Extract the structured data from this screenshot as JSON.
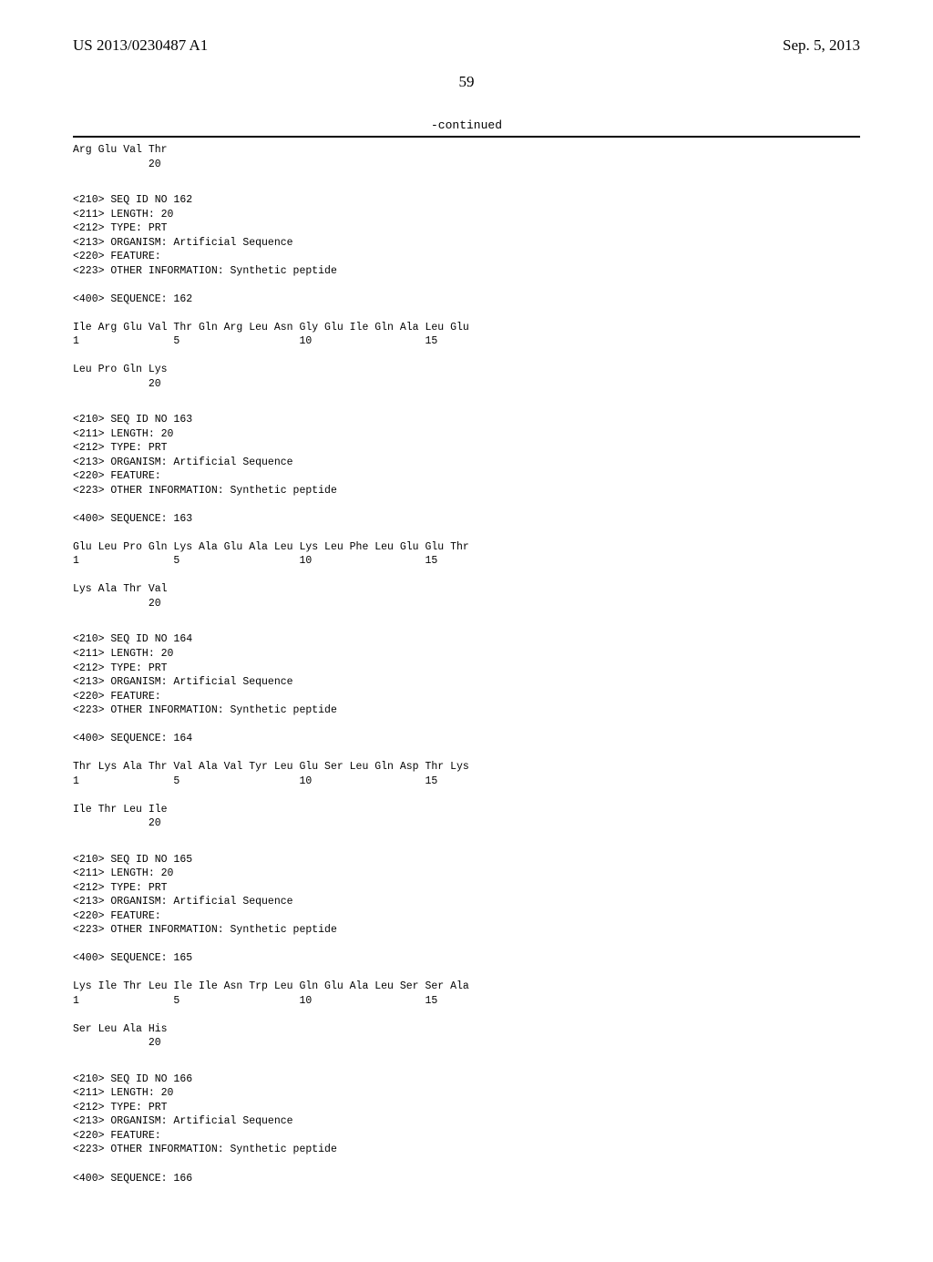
{
  "header": {
    "publication_number": "US 2013/0230487 A1",
    "publication_date": "Sep. 5, 2013"
  },
  "page_number": "59",
  "continued_label": "-continued",
  "tail_161": {
    "line1": "Arg Glu Val Thr",
    "nums": "            20"
  },
  "seq162": {
    "h1": "<210> SEQ ID NO 162",
    "h2": "<211> LENGTH: 20",
    "h3": "<212> TYPE: PRT",
    "h4": "<213> ORGANISM: Artificial Sequence",
    "h5": "<220> FEATURE:",
    "h6": "<223> OTHER INFORMATION: Synthetic peptide",
    "h7": "<400> SEQUENCE: 162",
    "row1": "Ile Arg Glu Val Thr Gln Arg Leu Asn Gly Glu Ile Gln Ala Leu Glu",
    "num1": "1               5                   10                  15",
    "row2": "Leu Pro Gln Lys",
    "num2": "            20"
  },
  "seq163": {
    "h1": "<210> SEQ ID NO 163",
    "h2": "<211> LENGTH: 20",
    "h3": "<212> TYPE: PRT",
    "h4": "<213> ORGANISM: Artificial Sequence",
    "h5": "<220> FEATURE:",
    "h6": "<223> OTHER INFORMATION: Synthetic peptide",
    "h7": "<400> SEQUENCE: 163",
    "row1": "Glu Leu Pro Gln Lys Ala Glu Ala Leu Lys Leu Phe Leu Glu Glu Thr",
    "num1": "1               5                   10                  15",
    "row2": "Lys Ala Thr Val",
    "num2": "            20"
  },
  "seq164": {
    "h1": "<210> SEQ ID NO 164",
    "h2": "<211> LENGTH: 20",
    "h3": "<212> TYPE: PRT",
    "h4": "<213> ORGANISM: Artificial Sequence",
    "h5": "<220> FEATURE:",
    "h6": "<223> OTHER INFORMATION: Synthetic peptide",
    "h7": "<400> SEQUENCE: 164",
    "row1": "Thr Lys Ala Thr Val Ala Val Tyr Leu Glu Ser Leu Gln Asp Thr Lys",
    "num1": "1               5                   10                  15",
    "row2": "Ile Thr Leu Ile",
    "num2": "            20"
  },
  "seq165": {
    "h1": "<210> SEQ ID NO 165",
    "h2": "<211> LENGTH: 20",
    "h3": "<212> TYPE: PRT",
    "h4": "<213> ORGANISM: Artificial Sequence",
    "h5": "<220> FEATURE:",
    "h6": "<223> OTHER INFORMATION: Synthetic peptide",
    "h7": "<400> SEQUENCE: 165",
    "row1": "Lys Ile Thr Leu Ile Ile Asn Trp Leu Gln Glu Ala Leu Ser Ser Ala",
    "num1": "1               5                   10                  15",
    "row2": "Ser Leu Ala His",
    "num2": "            20"
  },
  "seq166": {
    "h1": "<210> SEQ ID NO 166",
    "h2": "<211> LENGTH: 20",
    "h3": "<212> TYPE: PRT",
    "h4": "<213> ORGANISM: Artificial Sequence",
    "h5": "<220> FEATURE:",
    "h6": "<223> OTHER INFORMATION: Synthetic peptide",
    "h7": "<400> SEQUENCE: 166"
  }
}
